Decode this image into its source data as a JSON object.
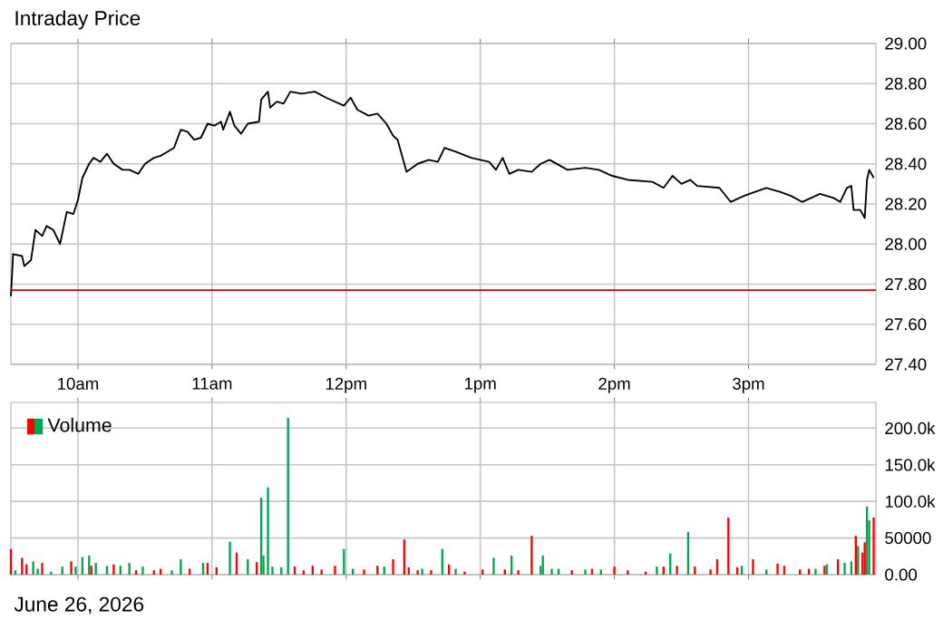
{
  "chart_data": [
    {
      "type": "line",
      "title": "Intraday Price",
      "grid": true,
      "xlim": [
        "2026-06-26T09:30",
        "2026-06-26T15:57"
      ],
      "ylim": [
        27.4,
        29.0
      ],
      "xticks": [
        {
          "value": "2026-06-26T10:00",
          "label": "10am"
        },
        {
          "value": "2026-06-26T11:00",
          "label": "11am"
        },
        {
          "value": "2026-06-26T12:00",
          "label": "12pm"
        },
        {
          "value": "2026-06-26T13:00",
          "label": "1pm"
        },
        {
          "value": "2026-06-26T14:00",
          "label": "2pm"
        },
        {
          "value": "2026-06-26T15:00",
          "label": "3pm"
        }
      ],
      "yticks": [
        {
          "value": 27.4,
          "label": "27.40"
        },
        {
          "value": 27.6,
          "label": "27.60"
        },
        {
          "value": 27.8,
          "label": "27.80"
        },
        {
          "value": 28.0,
          "label": "28.00"
        },
        {
          "value": 28.2,
          "label": "28.20"
        },
        {
          "value": 28.4,
          "label": "28.40"
        },
        {
          "value": 28.6,
          "label": "28.60"
        },
        {
          "value": 28.8,
          "label": "28.80"
        },
        {
          "value": 29.0,
          "label": "29.00"
        }
      ],
      "ref_lines": [
        {
          "axis": "y",
          "value": 27.77,
          "color": "#dd0000"
        }
      ],
      "series": [
        {
          "color": "#000000",
          "x": [
            "2026-06-26T09:30",
            "2026-06-26T09:31",
            "2026-06-26T09:35",
            "2026-06-26T09:36",
            "2026-06-26T09:39",
            "2026-06-26T09:41",
            "2026-06-26T09:44",
            "2026-06-26T09:46",
            "2026-06-26T09:49",
            "2026-06-26T09:52",
            "2026-06-26T09:55",
            "2026-06-26T09:58",
            "2026-06-26T10:00",
            "2026-06-26T10:02",
            "2026-06-26T10:05",
            "2026-06-26T10:07",
            "2026-06-26T10:10",
            "2026-06-26T10:13",
            "2026-06-26T10:16",
            "2026-06-26T10:20",
            "2026-06-26T10:23",
            "2026-06-26T10:27",
            "2026-06-26T10:30",
            "2026-06-26T10:34",
            "2026-06-26T10:37",
            "2026-06-26T10:40",
            "2026-06-26T10:43",
            "2026-06-26T10:46",
            "2026-06-26T10:49",
            "2026-06-26T10:52",
            "2026-06-26T10:55",
            "2026-06-26T10:58",
            "2026-06-26T11:01",
            "2026-06-26T11:04",
            "2026-06-26T11:05",
            "2026-06-26T11:08",
            "2026-06-26T11:10",
            "2026-06-26T11:13",
            "2026-06-26T11:16",
            "2026-06-26T11:21",
            "2026-06-26T11:22",
            "2026-06-26T11:25",
            "2026-06-26T11:26",
            "2026-06-26T11:29",
            "2026-06-26T11:32",
            "2026-06-26T11:35",
            "2026-06-26T11:40",
            "2026-06-26T11:46",
            "2026-06-26T11:51",
            "2026-06-26T11:55",
            "2026-06-26T11:59",
            "2026-06-26T12:02",
            "2026-06-26T12:05",
            "2026-06-26T12:10",
            "2026-06-26T12:14",
            "2026-06-26T12:18",
            "2026-06-26T12:21",
            "2026-06-26T12:23",
            "2026-06-26T12:27",
            "2026-06-26T12:32",
            "2026-06-26T12:37",
            "2026-06-26T12:41",
            "2026-06-26T12:44",
            "2026-06-26T12:49",
            "2026-06-26T12:56",
            "2026-06-26T13:04",
            "2026-06-26T13:07",
            "2026-06-26T13:10",
            "2026-06-26T13:13",
            "2026-06-26T13:17",
            "2026-06-26T13:23",
            "2026-06-26T13:27",
            "2026-06-26T13:31",
            "2026-06-26T13:39",
            "2026-06-26T13:47",
            "2026-06-26T13:53",
            "2026-06-26T13:59",
            "2026-06-26T14:06",
            "2026-06-26T14:17",
            "2026-06-26T14:22",
            "2026-06-26T14:26",
            "2026-06-26T14:30",
            "2026-06-26T14:34",
            "2026-06-26T14:37",
            "2026-06-26T14:47",
            "2026-06-26T14:52",
            "2026-06-26T14:58",
            "2026-06-26T15:03",
            "2026-06-26T15:08",
            "2026-06-26T15:14",
            "2026-06-26T15:19",
            "2026-06-26T15:24",
            "2026-06-26T15:30",
            "2026-06-26T15:32",
            "2026-06-26T15:38",
            "2026-06-26T15:41",
            "2026-06-26T15:44",
            "2026-06-26T15:46",
            "2026-06-26T15:47",
            "2026-06-26T15:50",
            "2026-06-26T15:52",
            "2026-06-26T15:53",
            "2026-06-26T15:54",
            "2026-06-26T15:56"
          ],
          "values": [
            27.74,
            27.95,
            27.94,
            27.89,
            27.92,
            28.07,
            28.04,
            28.09,
            28.07,
            28.0,
            28.16,
            28.15,
            28.22,
            28.33,
            28.4,
            28.43,
            28.41,
            28.45,
            28.4,
            28.37,
            28.37,
            28.35,
            28.4,
            28.43,
            28.44,
            28.46,
            28.48,
            28.57,
            28.56,
            28.52,
            28.53,
            28.6,
            28.59,
            28.61,
            28.57,
            28.66,
            28.59,
            28.55,
            28.6,
            28.61,
            28.72,
            28.76,
            28.68,
            28.71,
            28.7,
            28.76,
            28.75,
            28.76,
            28.73,
            28.71,
            28.69,
            28.73,
            28.67,
            28.64,
            28.65,
            28.6,
            28.54,
            28.52,
            28.36,
            28.4,
            28.42,
            28.41,
            28.48,
            28.46,
            28.43,
            28.41,
            28.37,
            28.43,
            28.35,
            28.37,
            28.36,
            28.4,
            28.42,
            28.37,
            28.38,
            28.37,
            28.34,
            28.32,
            28.31,
            28.28,
            28.34,
            28.3,
            28.32,
            28.29,
            28.28,
            28.21,
            28.24,
            28.26,
            28.28,
            28.26,
            28.24,
            28.21,
            28.24,
            28.25,
            28.23,
            28.21,
            28.28,
            28.29,
            28.17,
            28.17,
            28.13,
            28.32,
            28.37,
            28.33
          ]
        }
      ]
    },
    {
      "type": "bar",
      "grid": true,
      "legend": "top left",
      "tick_labels": "y",
      "annotations": [
        "June 26, 2026"
      ],
      "xlim": [
        "2026-06-26T09:30",
        "2026-06-26T15:57"
      ],
      "ylim": [
        0,
        235000
      ],
      "xticks": [
        {
          "value": "2026-06-26T10:00",
          "label": null
        },
        {
          "value": "2026-06-26T11:00",
          "label": null
        },
        {
          "value": "2026-06-26T12:00",
          "label": null
        },
        {
          "value": "2026-06-26T13:00",
          "label": null
        },
        {
          "value": "2026-06-26T14:00",
          "label": null
        },
        {
          "value": "2026-06-26T15:00",
          "label": null
        }
      ],
      "yticks": [
        {
          "value": 0,
          "label": "0.00"
        },
        {
          "value": 50000,
          "label": "50000"
        },
        {
          "value": 100000,
          "label": "100.0k"
        },
        {
          "value": 150000,
          "label": "150.0k"
        },
        {
          "value": 200000,
          "label": "200.0k"
        }
      ],
      "series": [
        {
          "name": "Volume",
          "x": [
            "2026-06-26T09:30",
            "2026-06-26T09:32",
            "2026-06-26T09:35",
            "2026-06-26T09:37",
            "2026-06-26T09:40",
            "2026-06-26T09:42",
            "2026-06-26T09:44",
            "2026-06-26T09:48",
            "2026-06-26T09:53",
            "2026-06-26T09:57",
            "2026-06-26T09:59",
            "2026-06-26T10:02",
            "2026-06-26T10:05",
            "2026-06-26T10:06",
            "2026-06-26T10:08",
            "2026-06-26T10:13",
            "2026-06-26T10:16",
            "2026-06-26T10:19",
            "2026-06-26T10:23",
            "2026-06-26T10:26",
            "2026-06-26T10:29",
            "2026-06-26T10:34",
            "2026-06-26T10:37",
            "2026-06-26T10:42",
            "2026-06-26T10:46",
            "2026-06-26T10:50",
            "2026-06-26T10:56",
            "2026-06-26T10:58",
            "2026-06-26T11:02",
            "2026-06-26T11:08",
            "2026-06-26T11:11",
            "2026-06-26T11:16",
            "2026-06-26T11:20",
            "2026-06-26T11:22",
            "2026-06-26T11:23",
            "2026-06-26T11:25",
            "2026-06-26T11:27",
            "2026-06-26T11:31",
            "2026-06-26T11:34",
            "2026-06-26T11:37",
            "2026-06-26T11:41",
            "2026-06-26T11:45",
            "2026-06-26T11:49",
            "2026-06-26T11:55",
            "2026-06-26T11:59",
            "2026-06-26T12:03",
            "2026-06-26T12:08",
            "2026-06-26T12:14",
            "2026-06-26T12:17",
            "2026-06-26T12:21",
            "2026-06-26T12:26",
            "2026-06-26T12:28",
            "2026-06-26T12:32",
            "2026-06-26T12:34",
            "2026-06-26T12:38",
            "2026-06-26T12:43",
            "2026-06-26T12:46",
            "2026-06-26T12:49",
            "2026-06-26T12:53",
            "2026-06-26T13:01",
            "2026-06-26T13:06",
            "2026-06-26T13:11",
            "2026-06-26T13:14",
            "2026-06-26T13:17",
            "2026-06-26T13:23",
            "2026-06-26T13:27",
            "2026-06-26T13:28",
            "2026-06-26T13:32",
            "2026-06-26T13:35",
            "2026-06-26T13:41",
            "2026-06-26T13:47",
            "2026-06-26T13:50",
            "2026-06-26T13:54",
            "2026-06-26T14:00",
            "2026-06-26T14:06",
            "2026-06-26T14:14",
            "2026-06-26T14:19",
            "2026-06-26T14:22",
            "2026-06-26T14:25",
            "2026-06-26T14:28",
            "2026-06-26T14:33",
            "2026-06-26T14:36",
            "2026-06-26T14:43",
            "2026-06-26T14:46",
            "2026-06-26T14:51",
            "2026-06-26T14:55",
            "2026-06-26T14:57",
            "2026-06-26T15:02",
            "2026-06-26T15:08",
            "2026-06-26T15:13",
            "2026-06-26T15:16",
            "2026-06-26T15:23",
            "2026-06-26T15:27",
            "2026-06-26T15:30",
            "2026-06-26T15:34",
            "2026-06-26T15:35",
            "2026-06-26T15:40",
            "2026-06-26T15:43",
            "2026-06-26T15:46",
            "2026-06-26T15:48",
            "2026-06-26T15:49",
            "2026-06-26T15:51",
            "2026-06-26T15:52",
            "2026-06-26T15:53",
            "2026-06-26T15:54",
            "2026-06-26T15:56"
          ],
          "values": [
            35000,
            6000,
            23000,
            14000,
            18000,
            8000,
            16000,
            4000,
            11000,
            18000,
            11000,
            24000,
            26000,
            12000,
            16000,
            12000,
            14000,
            12000,
            16000,
            6000,
            11000,
            6000,
            8000,
            6000,
            21000,
            8000,
            16000,
            16000,
            10000,
            45000,
            30000,
            21000,
            17000,
            105000,
            26000,
            119000,
            11000,
            10000,
            214000,
            11000,
            6000,
            12000,
            7000,
            12000,
            35000,
            8000,
            7000,
            12000,
            11000,
            21000,
            48000,
            10000,
            6000,
            8000,
            6000,
            35000,
            14000,
            8000,
            4000,
            7000,
            23000,
            7000,
            26000,
            6000,
            53000,
            12000,
            26000,
            8000,
            8000,
            6000,
            7000,
            8000,
            7000,
            11000,
            6000,
            4000,
            11000,
            11000,
            29000,
            12000,
            58000,
            11000,
            7000,
            21000,
            78000,
            10000,
            12000,
            21000,
            7000,
            15000,
            12000,
            7000,
            8000,
            8000,
            12000,
            14000,
            21000,
            16000,
            18000,
            53000,
            39000,
            30000,
            44000,
            93000,
            74000,
            78000
          ],
          "colors": [
            "#ff0000",
            "#00a650",
            "#ff0000",
            "#ff0000",
            "#00a650",
            "#00a650",
            "#ff0000",
            "#00a650",
            "#00a650",
            "#ff0000",
            "#00a650",
            "#00a650",
            "#00a650",
            "#ff0000",
            "#00a650",
            "#00a650",
            "#ff0000",
            "#00a650",
            "#00a650",
            "#ff0000",
            "#00a650",
            "#ff0000",
            "#ff0000",
            "#00a650",
            "#00a650",
            "#ff0000",
            "#00a650",
            "#ff0000",
            "#ff0000",
            "#00a650",
            "#ff0000",
            "#00a650",
            "#ff0000",
            "#00a650",
            "#00a650",
            "#00a650",
            "#00a650",
            "#00a650",
            "#00a650",
            "#ff0000",
            "#ff0000",
            "#ff0000",
            "#ff0000",
            "#ff0000",
            "#00a650",
            "#00a650",
            "#ff0000",
            "#ff0000",
            "#00a650",
            "#ff0000",
            "#ff0000",
            "#ff0000",
            "#ff0000",
            "#00a650",
            "#ff0000",
            "#00a650",
            "#ff0000",
            "#00a650",
            "#ff0000",
            "#ff0000",
            "#00a650",
            "#ff0000",
            "#00a650",
            "#ff0000",
            "#ff0000",
            "#00a650",
            "#00a650",
            "#00a650",
            "#00a650",
            "#ff0000",
            "#00a650",
            "#ff0000",
            "#00a650",
            "#ff0000",
            "#ff0000",
            "#ff0000",
            "#00a650",
            "#ff0000",
            "#00a650",
            "#ff0000",
            "#00a650",
            "#ff0000",
            "#ff0000",
            "#ff0000",
            "#ff0000",
            "#ff0000",
            "#00a650",
            "#ff0000",
            "#00a650",
            "#ff0000",
            "#ff0000",
            "#ff0000",
            "#ff0000",
            "#00a650",
            "#ff0000",
            "#00a650",
            "#ff0000",
            "#00a650",
            "#00a650",
            "#ff0000",
            "#00a650",
            "#ff0000",
            "#ff0000",
            "#00a650",
            "#00a650",
            "#ff0000"
          ]
        }
      ]
    }
  ]
}
